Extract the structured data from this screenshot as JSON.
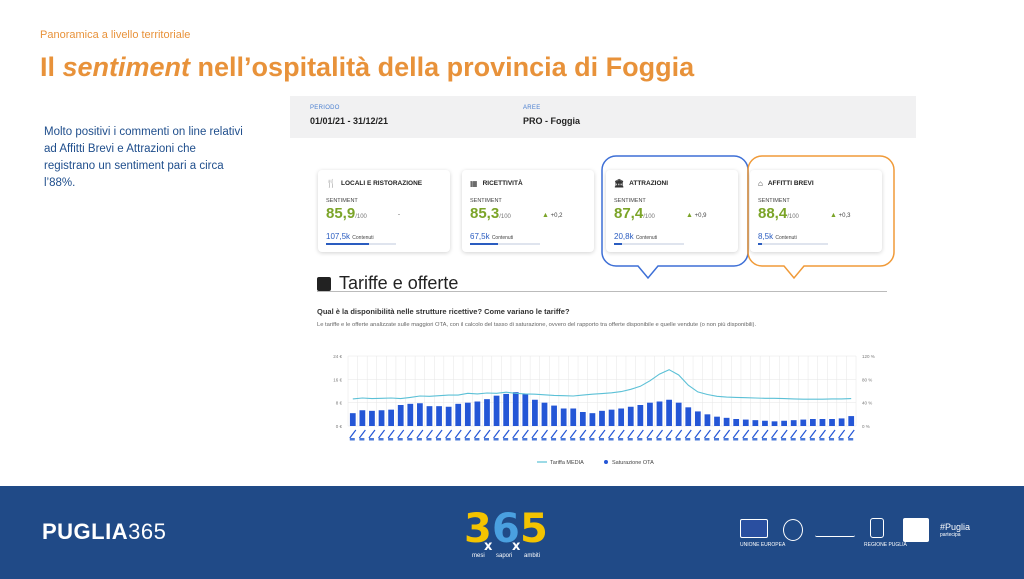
{
  "header": {
    "kicker": "Panoramica a livello territoriale",
    "title_pre": "Il ",
    "title_em": "sentiment",
    "title_post": " nell’ospitalità della provincia di Foggia"
  },
  "lead_text": "Molto positivi i commenti on line relativi ad Affitti Brevi e Attrazioni che registrano un sentiment pari a circa l’88%.",
  "filters": {
    "period_label": "PERIODO",
    "period_value": "01/01/21 - 31/12/21",
    "area_label": "AREE",
    "area_value": "PRO - Foggia"
  },
  "cards": [
    {
      "title": "LOCALI E RISTORAZIONE",
      "icon": "fork-knife-icon",
      "glyph": "🍴",
      "sentiment_label": "SENTIMENT",
      "value": "85,9",
      "scale": "/100",
      "delta": "-",
      "delta_up": false,
      "count": "107,5k",
      "count_label": "Contenuti",
      "bar": 0.62
    },
    {
      "title": "RICETTIVITÀ",
      "icon": "building-icon",
      "glyph": "▦",
      "sentiment_label": "SENTIMENT",
      "value": "85,3",
      "scale": "/100",
      "delta": "+0,2",
      "delta_up": true,
      "count": "67,5k",
      "count_label": "Contenuti",
      "bar": 0.4
    },
    {
      "title": "ATTRAZIONI",
      "icon": "museum-icon",
      "glyph": "🏛",
      "sentiment_label": "SENTIMENT",
      "value": "87,4",
      "scale": "/100",
      "delta": "+0,9",
      "delta_up": true,
      "count": "20,8k",
      "count_label": "Contenuti",
      "bar": 0.12
    },
    {
      "title": "AFFITTI BREVI",
      "icon": "house-icon",
      "glyph": "⌂",
      "sentiment_label": "SENTIMENT",
      "value": "88,4",
      "scale": "/100",
      "delta": "+0,3",
      "delta_up": true,
      "count": "8,5k",
      "count_label": "Contenuti",
      "bar": 0.05
    }
  ],
  "highlight_colors": {
    "attrazioni": "#3d6fd6",
    "affitti": "#f09a38"
  },
  "section": {
    "title": "Tariffe e offerte",
    "question": "Qual è la disponibilità nelle strutture ricettive? Come variano le tariffe?",
    "description": "Le tariffe e le offerte analizzate sulle maggiori OTA, con il calcolo del tasso di saturazione, ovvero del rapporto tra offerte disponibile e quelle vendute (o non più disponibili)."
  },
  "chart_data": {
    "type": "bar",
    "left_axis_ticks": [
      "24 €",
      "16 €",
      "8 €",
      "0 €"
    ],
    "right_axis_ticks": [
      "120 %",
      "80 %",
      "40 %",
      "0 %"
    ],
    "ylim_left": [
      0,
      24
    ],
    "ylim_right": [
      0,
      120
    ],
    "series": [
      {
        "name": "Tariffa MEDIA",
        "kind": "line",
        "color": "#5bc0d6",
        "values": [
          9.3,
          9.6,
          9.4,
          9.5,
          9.6,
          9.4,
          9.8,
          10.3,
          10.2,
          10.4,
          10.6,
          10.6,
          11.2,
          11.0,
          11.3,
          11.2,
          11.6,
          11.2,
          11.0,
          10.9,
          10.7,
          10.5,
          10.4,
          10.3,
          10.6,
          10.9,
          11.1,
          11.4,
          11.8,
          12.6,
          13.6,
          15.5,
          17.8,
          19.3,
          17.5,
          14.0,
          11.7,
          10.8,
          10.2,
          9.9,
          9.8,
          9.7,
          9.6,
          9.5,
          9.5,
          9.4,
          9.3,
          9.2,
          9.2,
          9.2,
          9.3,
          9.3,
          9.4
        ]
      },
      {
        "name": "Saturazione OTA",
        "kind": "bar",
        "color": "#2456d6",
        "values": [
          22,
          27,
          26,
          27,
          28,
          36,
          38,
          39,
          34,
          34,
          33,
          38,
          40,
          42,
          46,
          52,
          55,
          58,
          55,
          45,
          40,
          35,
          30,
          30,
          24,
          22,
          26,
          28,
          30,
          33,
          36,
          40,
          42,
          45,
          40,
          32,
          25,
          20,
          16,
          14,
          12,
          11,
          10,
          9,
          8,
          9,
          10,
          11,
          12,
          12,
          12,
          13,
          17
        ]
      }
    ]
  },
  "legend": {
    "line_label": "Tariffa MEDIA",
    "bar_label": "Saturazione OTA"
  },
  "footer": {
    "brand_bold": "PUGLIA",
    "brand_light": "365",
    "logo_caption_1": "mesi",
    "logo_caption_2": "sapori",
    "logo_caption_3": "ambiti",
    "eu_caption": "UNIONE EUROPEA",
    "regione_caption": "REGIONE PUGLIA",
    "hashtag": "#Puglia",
    "hashtag_sub": "partecipa",
    "colors": {
      "footer_bg": "#204a87",
      "logo_yellow": "#f3c300",
      "logo_blue": "#4aa0e0"
    }
  }
}
